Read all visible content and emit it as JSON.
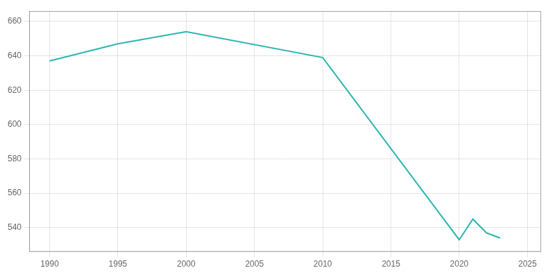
{
  "chart_data": {
    "type": "line",
    "x": [
      1990,
      1995,
      2000,
      2010,
      2020,
      2021,
      2022,
      2023
    ],
    "values": [
      637,
      647,
      654,
      639,
      533,
      545,
      537,
      534
    ],
    "color": "#2AB5B0",
    "xlim": [
      1988.5,
      2026
    ],
    "ylim": [
      526,
      666
    ],
    "xticks": [
      1990,
      1995,
      2000,
      2005,
      2010,
      2015,
      2020,
      2025
    ],
    "yticks": [
      540,
      560,
      580,
      600,
      620,
      640,
      660
    ],
    "grid": true
  }
}
